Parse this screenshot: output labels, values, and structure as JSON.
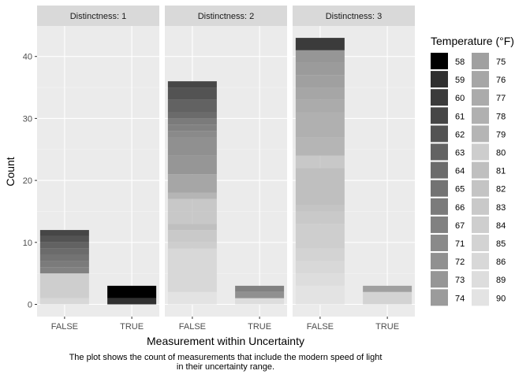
{
  "chart_data": {
    "type": "bar",
    "stacked": true,
    "facet_prefix": "Distinctness: ",
    "facets": [
      1,
      2,
      3
    ],
    "categories": [
      "FALSE",
      "TRUE"
    ],
    "xlabel": "Measurement within Uncertainty",
    "ylabel": "Count",
    "yticks": [
      0,
      10,
      20,
      30,
      40
    ],
    "ylim": [
      0,
      43
    ],
    "grid": true,
    "caption_lines": [
      "The plot shows the count of measurements that include the modern speed of light",
      "in their uncertainty range."
    ],
    "legend": {
      "title": "Temperature (°F)",
      "position": "right",
      "entries": [
        {
          "label": "58",
          "color": "#000000"
        },
        {
          "label": "59",
          "color": "#303030"
        },
        {
          "label": "60",
          "color": "#3b3b3b"
        },
        {
          "label": "61",
          "color": "#464646"
        },
        {
          "label": "62",
          "color": "#535353"
        },
        {
          "label": "63",
          "color": "#626262"
        },
        {
          "label": "64",
          "color": "#6b6b6b"
        },
        {
          "label": "65",
          "color": "#737373"
        },
        {
          "label": "66",
          "color": "#7b7b7b"
        },
        {
          "label": "67",
          "color": "#818181"
        },
        {
          "label": "71",
          "color": "#8a8a8a"
        },
        {
          "label": "72",
          "color": "#909090"
        },
        {
          "label": "73",
          "color": "#969696"
        },
        {
          "label": "74",
          "color": "#9b9b9b"
        },
        {
          "label": "75",
          "color": "#a0a0a0"
        },
        {
          "label": "76",
          "color": "#a6a6a6"
        },
        {
          "label": "77",
          "color": "#ababab"
        },
        {
          "label": "78",
          "color": "#b0b0b0"
        },
        {
          "label": "79",
          "color": "#b5b5b5"
        },
        {
          "label": "80",
          "color": "#babababa"
        },
        {
          "label": "81",
          "color": "#bfbfbf"
        },
        {
          "label": "82",
          "color": "#c4c4c4"
        },
        {
          "label": "83",
          "color": "#c9c9c9"
        },
        {
          "label": "84",
          "color": "#cecece"
        },
        {
          "label": "85",
          "color": "#d3d3d3"
        },
        {
          "label": "86",
          "color": "#d8d8d8"
        },
        {
          "label": "89",
          "color": "#dddddd"
        },
        {
          "label": "90",
          "color": "#e3e3e3"
        }
      ]
    },
    "bars": [
      {
        "facet": 1,
        "category": "FALSE",
        "total": 12,
        "segments": [
          {
            "temp": "86",
            "count": 1
          },
          {
            "temp": "84",
            "count": 4
          },
          {
            "temp": "67",
            "count": 1
          },
          {
            "temp": "66",
            "count": 1
          },
          {
            "temp": "65",
            "count": 1
          },
          {
            "temp": "64",
            "count": 1
          },
          {
            "temp": "63",
            "count": 1
          },
          {
            "temp": "62",
            "count": 1
          },
          {
            "temp": "61",
            "count": 1
          }
        ]
      },
      {
        "facet": 1,
        "category": "TRUE",
        "total": 3,
        "segments": [
          {
            "temp": "59",
            "count": 1
          },
          {
            "temp": "58",
            "count": 2
          }
        ]
      },
      {
        "facet": 2,
        "category": "FALSE",
        "total": 36,
        "segments": [
          {
            "temp": "90",
            "count": 2
          },
          {
            "temp": "86",
            "count": 7
          },
          {
            "temp": "84",
            "count": 1
          },
          {
            "temp": "83",
            "count": 2
          },
          {
            "temp": "81",
            "count": 1
          },
          {
            "temp": "80",
            "count": 4
          },
          {
            "temp": "79",
            "count": 1
          },
          {
            "temp": "76",
            "count": 3
          },
          {
            "temp": "73",
            "count": 3
          },
          {
            "temp": "72",
            "count": 3
          },
          {
            "temp": "71",
            "count": 1
          },
          {
            "temp": "67",
            "count": 1
          },
          {
            "temp": "66",
            "count": 1
          },
          {
            "temp": "64",
            "count": 1
          },
          {
            "temp": "63",
            "count": 2
          },
          {
            "temp": "62",
            "count": 2
          },
          {
            "temp": "61",
            "count": 1
          }
        ]
      },
      {
        "facet": 2,
        "category": "TRUE",
        "total": 3,
        "segments": [
          {
            "temp": "89",
            "count": 1
          },
          {
            "temp": "72",
            "count": 1
          },
          {
            "temp": "67",
            "count": 1
          }
        ]
      },
      {
        "facet": 3,
        "category": "FALSE",
        "total": 43,
        "segments": [
          {
            "temp": "90",
            "count": 3
          },
          {
            "temp": "89",
            "count": 2
          },
          {
            "temp": "86",
            "count": 2
          },
          {
            "temp": "85",
            "count": 2
          },
          {
            "temp": "84",
            "count": 4
          },
          {
            "temp": "83",
            "count": 2
          },
          {
            "temp": "82",
            "count": 1
          },
          {
            "temp": "81",
            "count": 6
          },
          {
            "temp": "80",
            "count": 2
          },
          {
            "temp": "79",
            "count": 3
          },
          {
            "temp": "78",
            "count": 4
          },
          {
            "temp": "77",
            "count": 2
          },
          {
            "temp": "76",
            "count": 2
          },
          {
            "temp": "75",
            "count": 2
          },
          {
            "temp": "74",
            "count": 2
          },
          {
            "temp": "73",
            "count": 2
          },
          {
            "temp": "60",
            "count": 2
          }
        ]
      },
      {
        "facet": 3,
        "category": "TRUE",
        "total": 3,
        "segments": [
          {
            "temp": "85",
            "count": 2
          },
          {
            "temp": "75",
            "count": 1
          }
        ]
      }
    ]
  }
}
